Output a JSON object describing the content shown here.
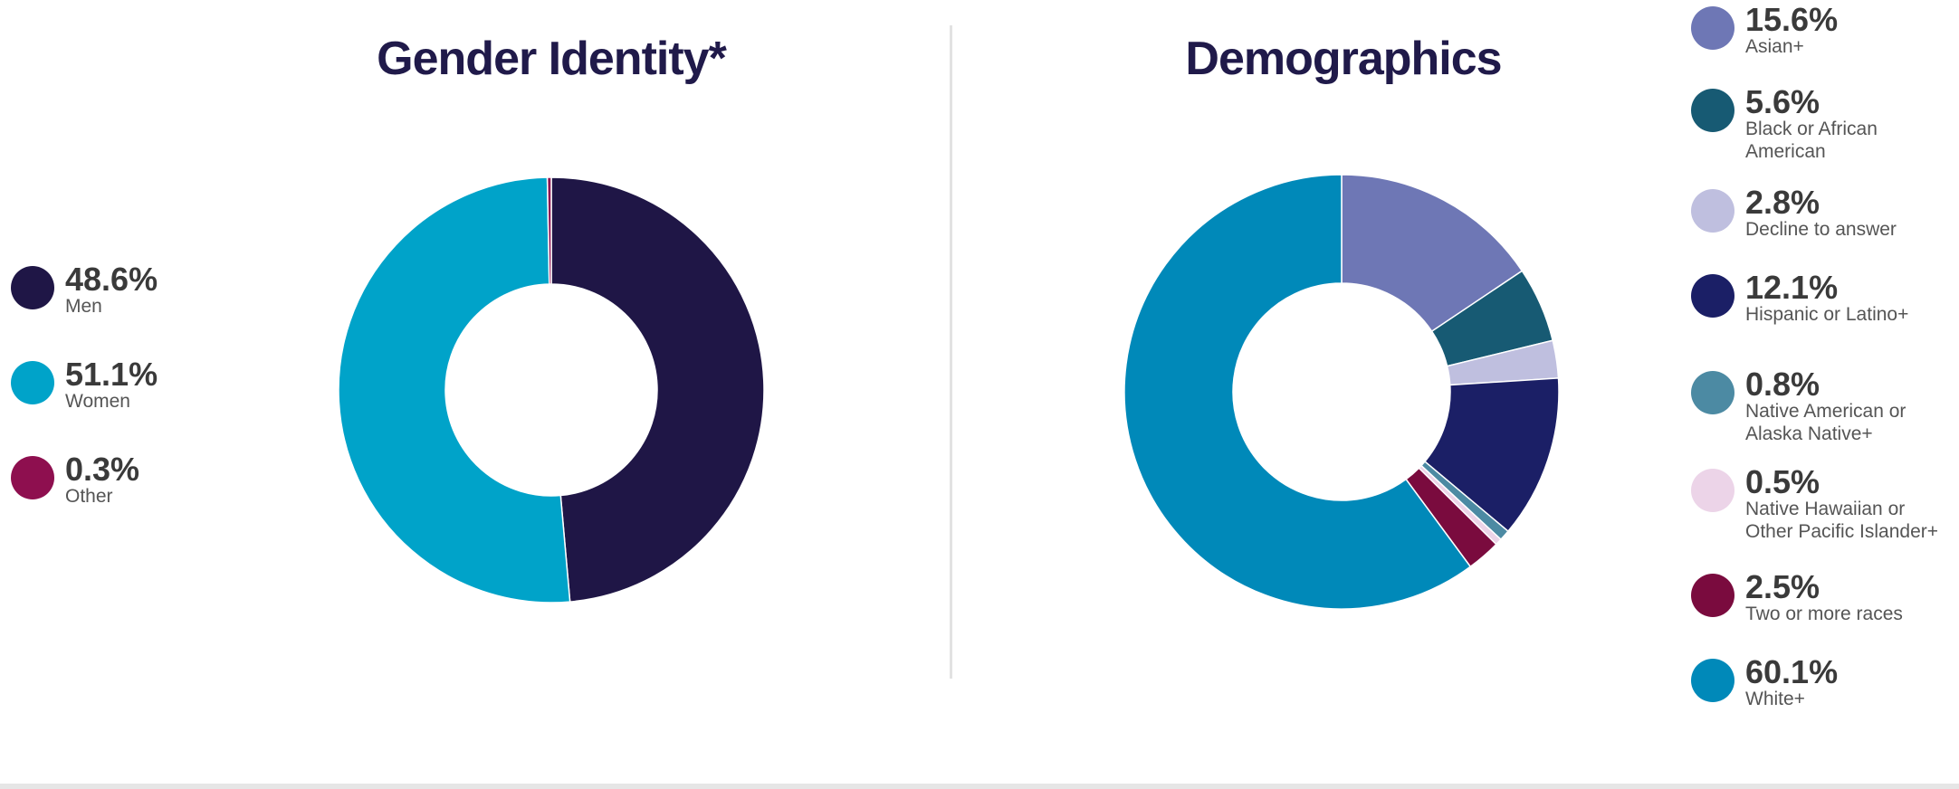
{
  "chart_data": [
    {
      "type": "donut",
      "title": "Gender Identity*",
      "categories": [
        "Men",
        "Women",
        "Other"
      ],
      "values": [
        48.6,
        51.1,
        0.3
      ],
      "value_labels": [
        "48.6%",
        "51.1%",
        "0.3%"
      ],
      "colors": [
        "#1f1646",
        "#00a3c9",
        "#8e0f4f"
      ],
      "legend": "left"
    },
    {
      "type": "donut",
      "title": "Demographics",
      "categories": [
        "Asian+",
        "Black or African American",
        "Decline to answer",
        "Hispanic or Latino+",
        "Native American or Alaska Native+",
        "Native Hawaiian or Other Pacific Islander+",
        "Two or more races",
        "White+"
      ],
      "values": [
        15.6,
        5.6,
        2.8,
        12.1,
        0.8,
        0.5,
        2.5,
        60.1
      ],
      "value_labels": [
        "15.6%",
        "5.6%",
        "2.8%",
        "12.1%",
        "0.8%",
        "0.5%",
        "2.5%",
        "60.1%"
      ],
      "colors": [
        "#6e77b5",
        "#175a73",
        "#bfbfdf",
        "#1b1f66",
        "#4c8aa3",
        "#ecd4e8",
        "#7a0b3e",
        "#0089b9"
      ],
      "legend": "right"
    }
  ]
}
